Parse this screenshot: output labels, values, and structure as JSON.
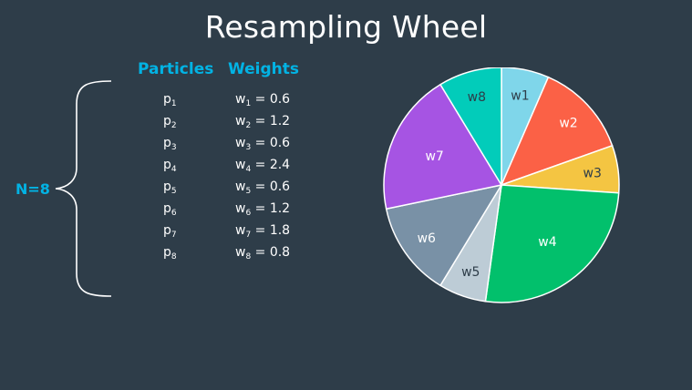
{
  "title": "Resampling Wheel",
  "headers": {
    "particles": "Particles",
    "weights": "Weights"
  },
  "n_label": "N=8",
  "rows": [
    {
      "p": "p",
      "p_sub": "1",
      "w": "w",
      "w_sub": "1",
      "eq": "= ",
      "val": "0.6"
    },
    {
      "p": "p",
      "p_sub": "2",
      "w": "w",
      "w_sub": "2",
      "eq": "= ",
      "val": "1.2"
    },
    {
      "p": "p",
      "p_sub": "3",
      "w": "w",
      "w_sub": "3",
      "eq": "= ",
      "val": "0.6"
    },
    {
      "p": "p",
      "p_sub": "4",
      "w": "w",
      "w_sub": "4",
      "eq": "= ",
      "val": "2.4"
    },
    {
      "p": "p",
      "p_sub": "5",
      "w": "w",
      "w_sub": "5",
      "eq": "= ",
      "val": "0.6"
    },
    {
      "p": "p",
      "p_sub": "6",
      "w": "w",
      "w_sub": "6",
      "eq": "= ",
      "val": "1.2"
    },
    {
      "p": "p",
      "p_sub": "7",
      "w": "w",
      "w_sub": "7",
      "eq": "= ",
      "val": "1.8"
    },
    {
      "p": "p",
      "p_sub": "8",
      "w": "w",
      "w_sub": "8",
      "eq": "= ",
      "val": "0.8"
    }
  ],
  "colors": {
    "background": "#2e3d49",
    "accent": "#02b3e4"
  },
  "chart_data": {
    "type": "pie",
    "slices": [
      {
        "label": "w1",
        "value": 0.6,
        "color": "#7fd6ea",
        "text_color": "#2e3d49"
      },
      {
        "label": "w2",
        "value": 1.2,
        "color": "#fb6146",
        "text_color": "#ffffff"
      },
      {
        "label": "w3",
        "value": 0.6,
        "color": "#f4c542",
        "text_color": "#2e3d49"
      },
      {
        "label": "w4",
        "value": 2.4,
        "color": "#02c06c",
        "text_color": "#ffffff"
      },
      {
        "label": "w5",
        "value": 0.6,
        "color": "#bdccd6",
        "text_color": "#2e3d49"
      },
      {
        "label": "w6",
        "value": 1.2,
        "color": "#7991a6",
        "text_color": "#ffffff"
      },
      {
        "label": "w7",
        "value": 1.8,
        "color": "#a654e3",
        "text_color": "#ffffff"
      },
      {
        "label": "w8",
        "value": 0.8,
        "color": "#02ccba",
        "text_color": "#2e3d49"
      }
    ]
  }
}
